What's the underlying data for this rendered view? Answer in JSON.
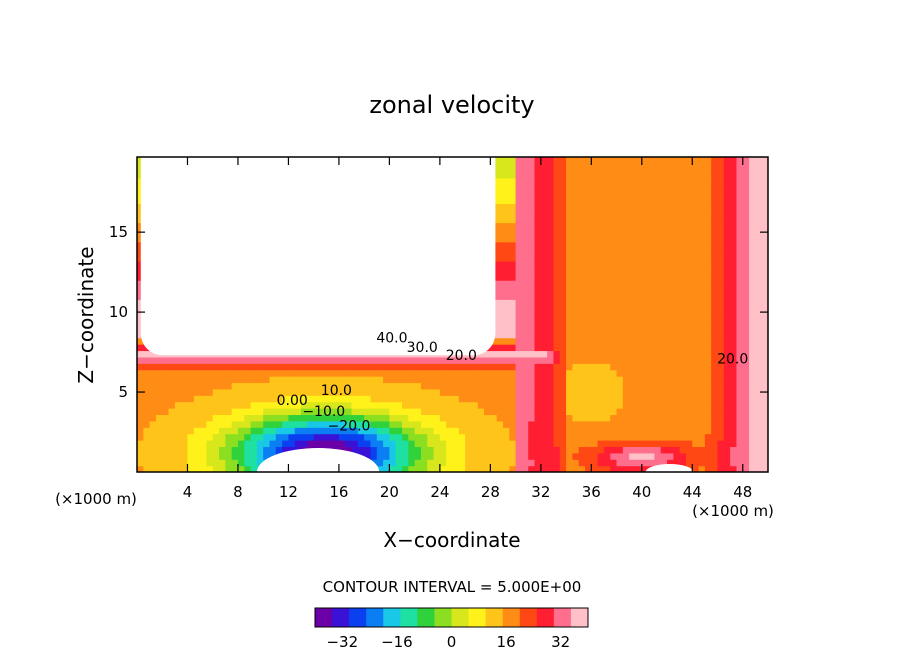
{
  "chart_data": {
    "type": "heatmap",
    "title": "zonal velocity",
    "xlabel": "X−coordinate",
    "ylabel": "Z−coordinate",
    "xlim": [
      0,
      50
    ],
    "ylim": [
      0,
      19.7
    ],
    "x_ticks": [
      4,
      8,
      12,
      16,
      20,
      24,
      28,
      32,
      36,
      40,
      44,
      48
    ],
    "x_tick_labels": [
      "4",
      "8",
      "12",
      "16",
      "20",
      "24",
      "28",
      "32",
      "36",
      "40",
      "44",
      "48"
    ],
    "y_ticks": [
      5,
      10,
      15
    ],
    "y_tick_labels": [
      "5",
      "10",
      "15"
    ],
    "x_unit_left": "(×1000 m)",
    "x_unit_right": "(×1000 m)",
    "contour_interval_text": "CONTOUR INTERVAL = 5.000E+00",
    "colorbar": {
      "min": -40,
      "max": 40,
      "ticks": [
        -32,
        -16,
        0,
        16,
        32
      ],
      "tick_labels": [
        "−32",
        "−16",
        "0",
        "16",
        "32"
      ]
    },
    "contour_labels": [
      {
        "text": "40.0",
        "x": 20.2,
        "z": 8.1
      },
      {
        "text": "30.0",
        "x": 22.6,
        "z": 7.5
      },
      {
        "text": "20.0",
        "x": 25.7,
        "z": 7.0
      },
      {
        "text": "10.0",
        "x": 15.8,
        "z": 4.8
      },
      {
        "text": "0.00",
        "x": 12.3,
        "z": 4.2
      },
      {
        "text": "−10.0",
        "x": 14.8,
        "z": 3.5
      },
      {
        "text": "−20.0",
        "x": 16.8,
        "z": 2.6
      },
      {
        "text": "20.0",
        "x": 47.2,
        "z": 6.8
      }
    ],
    "missing_regions": [
      {
        "label": "upper-left",
        "x_range": [
          0.3,
          28.4
        ],
        "z_range": [
          7.3,
          19.7
        ]
      },
      {
        "label": "bottom-center",
        "x_range": [
          9.5,
          19.2
        ],
        "z_range": [
          0,
          1.5
        ]
      },
      {
        "label": "bottom-right",
        "x_range": [
          40.3,
          44.1
        ],
        "z_range": [
          0,
          0.5
        ]
      }
    ],
    "colormap": [
      "#6b00a8",
      "#3a12d6",
      "#0a40f0",
      "#0a7ef2",
      "#18c8e6",
      "#1ee0a0",
      "#30d23c",
      "#8cde20",
      "#d8e61c",
      "#fff21a",
      "#ffc41a",
      "#ff8c14",
      "#ff4814",
      "#ff1e32",
      "#ff6e8c",
      "#ffc0c8"
    ]
  }
}
